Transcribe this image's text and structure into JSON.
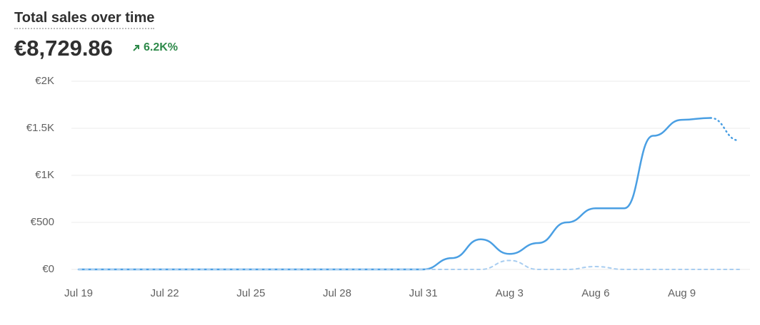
{
  "header": {
    "title": "Total sales over time",
    "total": "€8,729.86",
    "change": "6.2K%"
  },
  "chart_data": {
    "type": "line",
    "categories": [
      "Jul 19",
      null,
      null,
      "Jul 22",
      null,
      null,
      "Jul 25",
      null,
      null,
      "Jul 28",
      null,
      null,
      "Jul 31",
      null,
      null,
      "Aug 3",
      null,
      null,
      "Aug 6",
      null,
      null,
      "Aug 9",
      null,
      null
    ],
    "series": [
      {
        "color": "#4a9fe3",
        "values": [
          0,
          0,
          0,
          0,
          0,
          0,
          0,
          0,
          0,
          0,
          0,
          0,
          0,
          120,
          320,
          165,
          280,
          500,
          650,
          650,
          1420,
          1590,
          1610,
          1370
        ]
      },
      {
        "color": "#a8cdf0",
        "values": [
          0,
          0,
          0,
          0,
          0,
          0,
          0,
          0,
          0,
          0,
          0,
          0,
          0,
          0,
          0,
          95,
          0,
          0,
          30,
          0,
          0,
          0,
          0,
          0
        ]
      }
    ],
    "ylim": [
      0,
      2000
    ],
    "yticks": [
      {
        "value": 0,
        "label": "€0"
      },
      {
        "value": 500,
        "label": "€500"
      },
      {
        "value": 1000,
        "label": "€1K"
      },
      {
        "value": 1500,
        "label": "€1.5K"
      },
      {
        "value": 2000,
        "label": "€2K"
      }
    ],
    "grid": true
  }
}
